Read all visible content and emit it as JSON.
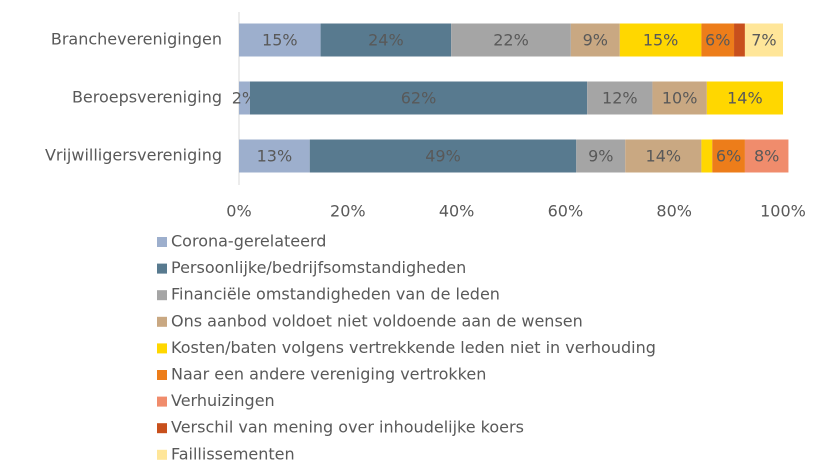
{
  "chart_data": {
    "type": "stacked-bar-horizontal",
    "categories": [
      "Brancheverenigingen",
      "Beroepsvereniging",
      "Vrijwilligersvereniging"
    ],
    "series": [
      {
        "name": "Corona-gerelateerd",
        "color": "#9dafcd",
        "values": [
          15,
          2,
          13
        ],
        "value_labels": [
          "15%",
          "2%",
          "13%"
        ]
      },
      {
        "name": "Persoonlijke/bedrijfsomstandigheden",
        "color": "#587a8f",
        "values": [
          24,
          62,
          49
        ],
        "value_labels": [
          "24%",
          "62%",
          "49%"
        ]
      },
      {
        "name": "Financiële omstandigheden van de leden",
        "color": "#a5a5a5",
        "values": [
          22,
          12,
          9
        ],
        "value_labels": [
          "22%",
          "12%",
          "9%"
        ]
      },
      {
        "name": "Ons aanbod voldoet niet voldoende aan de wensen",
        "color": "#c9a882",
        "values": [
          9,
          10,
          14
        ],
        "value_labels": [
          "9%",
          "10%",
          "14%"
        ]
      },
      {
        "name": "Kosten/baten volgens vertrekkende leden niet in verhouding",
        "color": "#ffd700",
        "values": [
          15,
          14,
          2
        ],
        "value_labels": [
          "15%",
          "14%",
          null
        ]
      },
      {
        "name": "Naar een andere vereniging vertrokken",
        "color": "#ed7d1a",
        "values": [
          6,
          0,
          6
        ],
        "value_labels": [
          "6%",
          null,
          "6%"
        ]
      },
      {
        "name": "Verhuizingen",
        "color": "#f08c6c",
        "values": [
          0,
          0,
          8
        ],
        "value_labels": [
          null,
          null,
          "8%"
        ]
      },
      {
        "name": "Verschil van mening over inhoudelijke koers",
        "color": "#c8501c",
        "values": [
          2,
          0,
          0
        ],
        "value_labels": [
          null,
          null,
          null
        ]
      },
      {
        "name": "Faillissementen",
        "color": "#ffe699",
        "values": [
          7,
          0,
          0
        ],
        "value_labels": [
          "7%",
          null,
          null
        ]
      }
    ],
    "xlim": [
      0,
      100
    ],
    "xticks": [
      {
        "value": 0,
        "label": "0%"
      },
      {
        "value": 20,
        "label": "20%"
      },
      {
        "value": 40,
        "label": "40%"
      },
      {
        "value": 60,
        "label": "60%"
      },
      {
        "value": 80,
        "label": "80%"
      },
      {
        "value": 100,
        "label": "100%"
      }
    ]
  }
}
